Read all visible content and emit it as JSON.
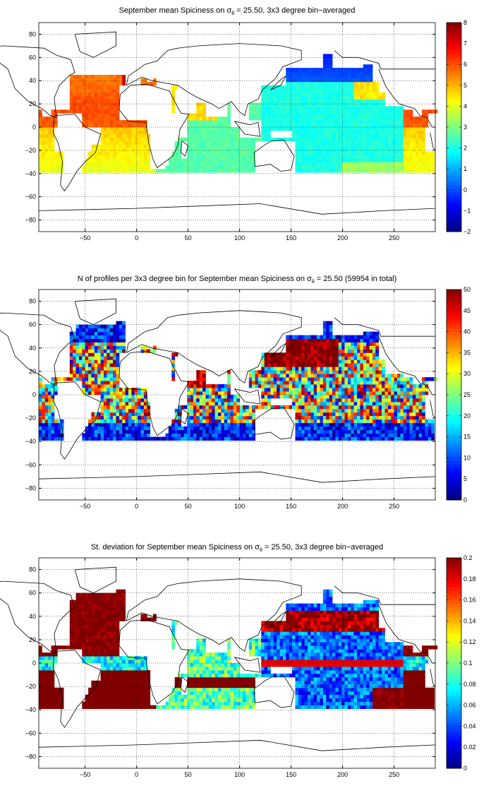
{
  "figure": {
    "subplots": 3
  },
  "chart_data": [
    {
      "type": "heatmap",
      "title_parts": [
        "September mean Spiciness on ",
        "σ",
        "θ",
        " = 25.50, 3x3 degree bin−averaged"
      ],
      "xlabel": "",
      "ylabel": "",
      "xlim": [
        -95,
        290
      ],
      "ylim": [
        -90,
        90
      ],
      "xticks": [
        -50,
        0,
        50,
        100,
        150,
        200,
        250
      ],
      "yticks": [
        80,
        60,
        40,
        20,
        0,
        -20,
        -40,
        -60,
        -80
      ],
      "xtick_labels": [
        "−50",
        "0",
        "50",
        "100",
        "150",
        "200",
        "250"
      ],
      "ytick_labels": [
        "80",
        "60",
        "40",
        "20",
        "0",
        "−20",
        "−40",
        "−60",
        "−80"
      ],
      "grid": "dotted",
      "colorbar": {
        "colormap": "jet",
        "range": [
          -2,
          8
        ],
        "ticks": [
          8,
          7,
          6,
          5,
          4,
          3,
          2,
          1,
          0,
          -1,
          -2
        ],
        "tick_labels": [
          "8",
          "7",
          "6",
          "5",
          "4",
          "3",
          "2",
          "1",
          "0",
          "−1",
          "−2"
        ]
      },
      "field": "spiciness_mean",
      "description_values": {
        "north_atlantic_subtropics": 6.0,
        "mediterranean_outflow": 7.3,
        "south_atlantic": 4.5,
        "indian_ocean": 2.5,
        "north_pacific_subpolar": 0.5,
        "central_pacific": 2.0
      }
    },
    {
      "type": "heatmap",
      "title_parts": [
        "N of profiles per 3x3 degree bin for September mean Spiciness on ",
        "σ",
        "θ",
        " = 25.50 (59954 in total)"
      ],
      "xlabel": "",
      "ylabel": "",
      "xlim": [
        -95,
        290
      ],
      "ylim": [
        -90,
        90
      ],
      "xticks": [
        -50,
        0,
        50,
        100,
        150,
        200,
        250
      ],
      "yticks": [
        80,
        60,
        40,
        20,
        0,
        -20,
        -40,
        -60,
        -80
      ],
      "xtick_labels": [
        "−50",
        "0",
        "50",
        "100",
        "150",
        "200",
        "250"
      ],
      "ytick_labels": [
        "80",
        "60",
        "40",
        "20",
        "0",
        "−20",
        "−40",
        "−60",
        "−80"
      ],
      "grid": "dotted",
      "colorbar": {
        "colormap": "jet",
        "range": [
          0,
          50
        ],
        "ticks": [
          50,
          45,
          40,
          35,
          30,
          25,
          20,
          15,
          10,
          5,
          0
        ],
        "tick_labels": [
          "50",
          "45",
          "40",
          "35",
          "30",
          "25",
          "20",
          "15",
          "10",
          "5",
          "0"
        ]
      },
      "field": "profile_count",
      "total_profiles": 59954
    },
    {
      "type": "heatmap",
      "title_parts": [
        "St. deviation for September mean Spiciness on ",
        "σ",
        "θ",
        " = 25.50, 3x3 degree bin−averaged"
      ],
      "xlabel": "",
      "ylabel": "",
      "xlim": [
        -95,
        290
      ],
      "ylim": [
        -90,
        90
      ],
      "xticks": [
        -50,
        0,
        50,
        100,
        150,
        200,
        250
      ],
      "yticks": [
        80,
        60,
        40,
        20,
        0,
        -20,
        -40,
        -60,
        -80
      ],
      "xtick_labels": [
        "−50",
        "0",
        "50",
        "100",
        "150",
        "200",
        "250"
      ],
      "ytick_labels": [
        "80",
        "60",
        "40",
        "20",
        "0",
        "−20",
        "−40",
        "−60",
        "−80"
      ],
      "grid": "dotted",
      "colorbar": {
        "colormap": "jet",
        "range": [
          0,
          0.2
        ],
        "ticks": [
          0.2,
          0.18,
          0.16,
          0.14,
          0.12,
          0.1,
          0.08,
          0.06,
          0.04,
          0.02,
          0
        ],
        "tick_labels": [
          "0.2",
          "0.18",
          "0.16",
          "0.14",
          "0.12",
          "0.1",
          "0.08",
          "0.06",
          "0.04",
          "0.02",
          "0"
        ]
      },
      "field": "spiciness_std"
    }
  ]
}
